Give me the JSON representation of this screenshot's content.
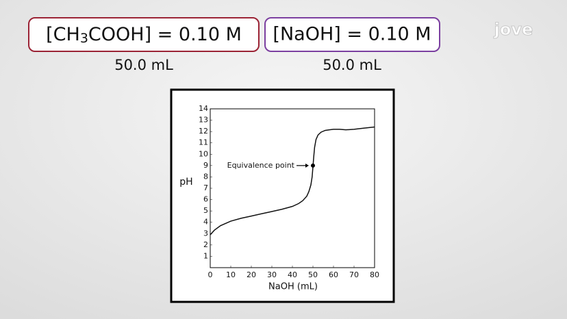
{
  "header": {
    "acid": {
      "before_subscript": "[CH",
      "subscript": "3",
      "after_subscript": "COOH] = 0.10 M",
      "volume": "50.0 mL"
    },
    "base": {
      "text": "[NaOH] = 0.10 M",
      "volume": "50.0 mL"
    },
    "logo": "jove"
  },
  "chart_data": {
    "type": "line",
    "x_label": "NaOH (mL)",
    "y_label": "pH",
    "x": [
      0,
      2,
      5,
      10,
      15,
      20,
      25,
      30,
      35,
      40,
      43,
      45,
      47,
      48,
      49,
      49.6,
      50,
      50.4,
      50.8,
      51.5,
      52.5,
      54,
      56,
      58,
      60,
      63,
      66,
      70,
      75,
      80
    ],
    "series": [
      {
        "name": "pH",
        "color": "#111111",
        "values": [
          2.9,
          3.3,
          3.7,
          4.1,
          4.35,
          4.55,
          4.75,
          4.95,
          5.15,
          5.4,
          5.65,
          5.9,
          6.3,
          6.7,
          7.3,
          8.0,
          8.9,
          9.8,
          10.6,
          11.3,
          11.7,
          11.95,
          12.1,
          12.15,
          12.2,
          12.2,
          12.15,
          12.2,
          12.3,
          12.4
        ]
      }
    ],
    "annotation": {
      "text": "Equivalence point",
      "x": 50,
      "y": 9
    },
    "xlim": [
      0,
      80
    ],
    "xticks": [
      0,
      10,
      20,
      30,
      40,
      50,
      60,
      70,
      80
    ],
    "ylim": [
      0,
      14
    ],
    "yticks": [
      1,
      2,
      3,
      4,
      5,
      6,
      7,
      8,
      9,
      10,
      11,
      12,
      13,
      14
    ],
    "grid": false
  }
}
